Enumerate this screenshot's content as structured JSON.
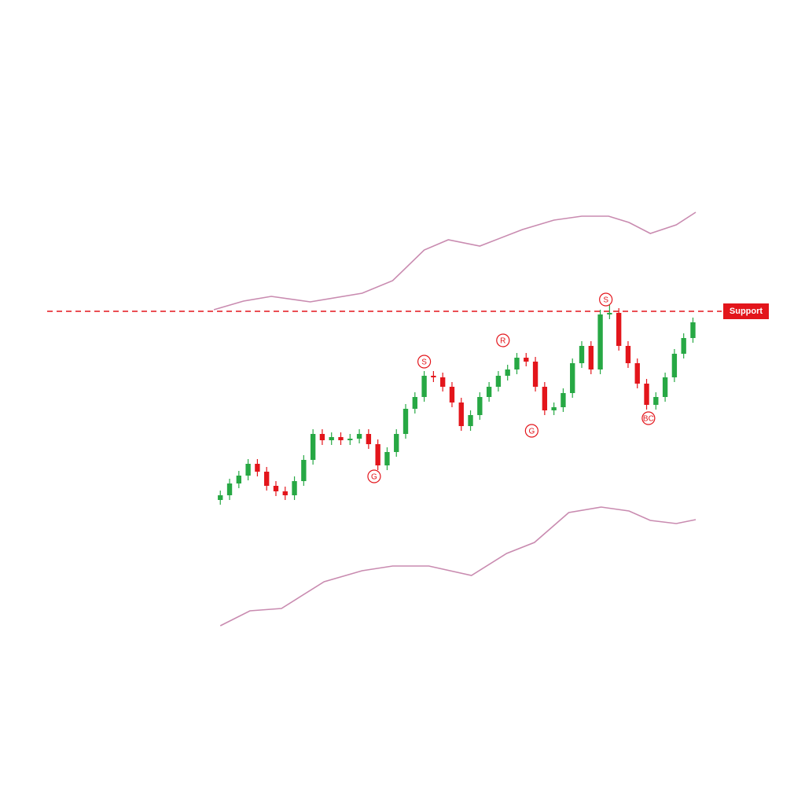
{
  "chart_data": {
    "type": "candlestick",
    "x": [
      0,
      1,
      2,
      3,
      4,
      5,
      6,
      7,
      8,
      9,
      10,
      11,
      12,
      13,
      14,
      15,
      16,
      17,
      18,
      19,
      20,
      21,
      22,
      23,
      24,
      25,
      26,
      27,
      28,
      29,
      30,
      31,
      32,
      33,
      34,
      35,
      36,
      37,
      38,
      39,
      40,
      41,
      42,
      43,
      44,
      45,
      46,
      47,
      48,
      49,
      50,
      51
    ],
    "open": [
      388,
      394,
      409,
      419,
      434,
      424,
      406,
      399,
      394,
      412,
      439,
      472,
      464,
      468,
      464,
      466,
      472,
      459,
      432,
      449,
      472,
      504,
      519,
      546,
      544,
      532,
      512,
      482,
      496,
      519,
      532,
      546,
      554,
      569,
      564,
      532,
      502,
      506,
      524,
      562,
      584,
      554,
      624,
      626,
      584,
      562,
      536,
      509,
      519,
      544,
      574,
      594
    ],
    "high": [
      400,
      415,
      425,
      440,
      440,
      430,
      412,
      405,
      418,
      445,
      478,
      478,
      474,
      474,
      472,
      478,
      478,
      465,
      455,
      478,
      510,
      525,
      552,
      552,
      550,
      538,
      518,
      502,
      525,
      538,
      552,
      560,
      575,
      575,
      570,
      538,
      512,
      530,
      568,
      590,
      590,
      630,
      636,
      632,
      590,
      568,
      542,
      525,
      550,
      580,
      600,
      620
    ],
    "low": [
      382,
      388,
      403,
      413,
      418,
      400,
      393,
      388,
      388,
      406,
      433,
      458,
      458,
      458,
      458,
      460,
      453,
      426,
      426,
      443,
      466,
      498,
      513,
      538,
      526,
      506,
      476,
      476,
      490,
      513,
      526,
      540,
      548,
      558,
      526,
      496,
      496,
      500,
      518,
      556,
      548,
      548,
      618,
      578,
      556,
      530,
      503,
      503,
      513,
      538,
      568,
      588
    ],
    "close": [
      394,
      409,
      419,
      434,
      424,
      406,
      399,
      394,
      412,
      439,
      472,
      464,
      468,
      464,
      466,
      472,
      459,
      432,
      449,
      472,
      504,
      519,
      546,
      544,
      532,
      512,
      482,
      496,
      519,
      532,
      546,
      554,
      569,
      564,
      532,
      502,
      506,
      524,
      562,
      584,
      554,
      624,
      626,
      584,
      562,
      536,
      509,
      519,
      544,
      574,
      594,
      614
    ],
    "up_color": "#27a844",
    "down_color": "#e3151b",
    "bands": [
      {
        "color": "#c98bb0",
        "x": [
          -0.7,
          2.5,
          5.5,
          9.7,
          15.3,
          18.6,
          22,
          24.6,
          28,
          32.6,
          36,
          39,
          41.9,
          44.1,
          46.4,
          49.2,
          51.3
        ],
        "values": [
          630,
          641,
          647,
          640,
          651,
          667,
          706,
          719,
          711,
          732,
          744,
          749,
          749,
          741,
          727,
          738,
          754
        ]
      },
      {
        "color": "#c98bb0",
        "x": [
          0,
          3.2,
          6.6,
          11.2,
          15.3,
          18.6,
          22.5,
          27.1,
          30.9,
          33.9,
          37.6,
          41.1,
          44.1,
          46.4,
          49.2,
          51.3
        ],
        "values": [
          228,
          247,
          250,
          284,
          298,
          304,
          304,
          292,
          320,
          334,
          372,
          379,
          374,
          362,
          358,
          363
        ]
      }
    ],
    "support": {
      "value": 628,
      "label": "Support",
      "color": "#e3151b"
    },
    "annotations": [
      {
        "text": "S",
        "x": 22,
        "y": 564
      },
      {
        "text": "R",
        "x": 30.5,
        "y": 591
      },
      {
        "text": "S",
        "x": 41.6,
        "y": 643
      },
      {
        "text": "G",
        "x": 16.6,
        "y": 418
      },
      {
        "text": "G",
        "x": 33.6,
        "y": 476
      },
      {
        "text": "BC",
        "x": 46.2,
        "y": 492
      }
    ],
    "xlim": [
      -0.7,
      51.3
    ],
    "ylim": [
      0,
      1024
    ]
  }
}
